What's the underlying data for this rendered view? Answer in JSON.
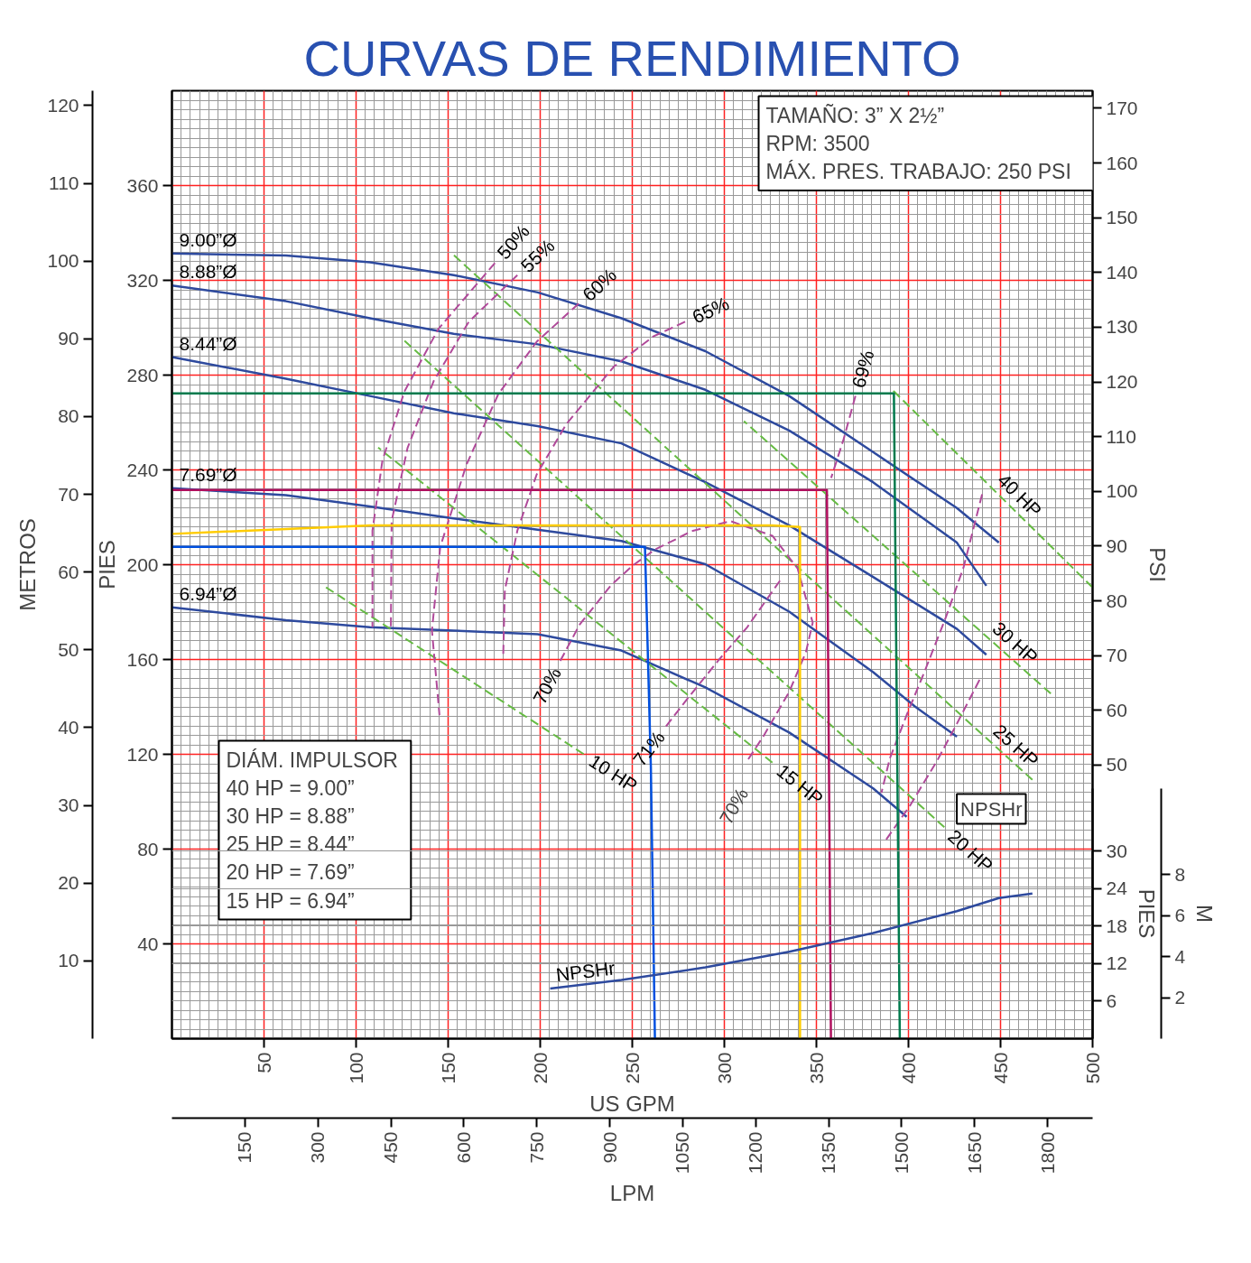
{
  "chart_data": [
    {
      "type": "line",
      "title": "CURVAS DE RENDIMIENTO",
      "xlabel": "US GPM",
      "x2label": "LPM",
      "ylabel": "PIES",
      "y2label": "METROS",
      "y3label": "PSI",
      "xlim": [
        0,
        500
      ],
      "xticks": [
        50,
        100,
        150,
        200,
        250,
        300,
        350,
        400,
        450,
        500
      ],
      "x2lim": [
        0,
        1892.7
      ],
      "x2ticks": [
        150,
        300,
        450,
        600,
        750,
        900,
        1050,
        1200,
        1350,
        1500,
        1650,
        1800
      ],
      "ylim": [
        0,
        400
      ],
      "yticks": [
        40,
        80,
        120,
        160,
        200,
        240,
        280,
        320,
        360
      ],
      "y2lim": [
        0,
        121.9
      ],
      "y2ticks": [
        10,
        20,
        30,
        40,
        50,
        60,
        70,
        80,
        90,
        100,
        110,
        120
      ],
      "y3lim": [
        0,
        173.2
      ],
      "y3ticks": [
        50,
        60,
        70,
        80,
        90,
        100,
        110,
        120,
        130,
        140,
        150,
        160,
        170
      ],
      "grid": true,
      "legend": false,
      "marker": "none",
      "annotations": [
        "TAMAÑO:  3”  X  2½”",
        "RPM:  3500",
        "MÁX.  PRES.  TRABAJO:  250  PSI",
        "DIÁM.  IMPULSOR",
        "40  HP  =  9.00”",
        "30  HP  =  8.88”",
        "25  HP  =  8.44”",
        "20  HP  =  7.69”",
        "15  HP  =  6.94”",
        "70%"
      ],
      "series": [
        {
          "name": "9.00”Ø",
          "color": "#2e4a9e",
          "line_style": "solid",
          "x": [
            0,
            61.9,
            107.5,
            153,
            198.6,
            244.1,
            289.7,
            335.2,
            380.8,
            426.3,
            449.1
          ],
          "values": [
            331.3,
            330.5,
            327.6,
            322.2,
            314.9,
            304,
            290.1,
            271.2,
            247.5,
            223.9,
            209.3
          ]
        },
        {
          "name": "8.88”Ø",
          "color": "#2e4a9e",
          "line_style": "solid",
          "x": [
            0,
            61.9,
            107.5,
            153,
            198.6,
            244.1,
            289.7,
            335.2,
            380.8,
            426.3,
            442.3
          ],
          "values": [
            317.8,
            311.2,
            304,
            297.4,
            293,
            285.8,
            273.8,
            256.6,
            234.8,
            209.3,
            191.1
          ]
        },
        {
          "name": "8.44”Ø",
          "color": "#2e4a9e",
          "line_style": "solid",
          "x": [
            0,
            61.9,
            107.5,
            153,
            198.6,
            244.1,
            289.7,
            335.2,
            380.8,
            426.3,
            442.3
          ],
          "values": [
            287.6,
            278.5,
            271.2,
            263.9,
            258.5,
            251.2,
            234.8,
            216.6,
            194.8,
            172.9,
            162
          ]
        },
        {
          "name": "7.69”Ø",
          "color": "#2e4a9e",
          "line_style": "solid",
          "x": [
            0,
            61.9,
            107.5,
            153,
            198.6,
            244.1,
            289.7,
            335.2,
            380.8,
            403.5,
            426.3
          ],
          "values": [
            232.3,
            229.3,
            224.6,
            219.5,
            214.8,
            210,
            200.2,
            180.2,
            154.7,
            140.2,
            127.4
          ]
        },
        {
          "name": "6.94”Ø",
          "color": "#2e4a9e",
          "line_style": "solid",
          "x": [
            0,
            61.9,
            107.5,
            153,
            198.6,
            244.1,
            289.7,
            335.2,
            380.8,
            399
          ],
          "values": [
            182,
            176.6,
            173.6,
            172.2,
            170.7,
            163.8,
            148.2,
            129.2,
            105.6,
            93.6
          ]
        },
        {
          "name": "10 HP",
          "color": "#66bb44",
          "line_style": "dashed",
          "x": [
            223.6,
            82.4
          ],
          "values": [
            120.1,
            191.1
          ]
        },
        {
          "name": "15 HP",
          "color": "#66bb44",
          "line_style": "dashed",
          "x": [
            326.1,
            112.0
          ],
          "values": [
            116.5,
            249.4
          ]
        },
        {
          "name": "20 HP",
          "color": "#66bb44",
          "line_style": "dashed",
          "x": [
            419.5,
            125.7
          ],
          "values": [
            89.2,
            294.9
          ]
        },
        {
          "name": "25 HP",
          "color": "#66bb44",
          "line_style": "dashed",
          "x": [
            467.3,
            152.1
          ],
          "values": [
            109.2,
            331.3
          ]
        },
        {
          "name": "30 HP",
          "color": "#66bb44",
          "line_style": "dashed",
          "x": [
            477.3,
            310.6
          ],
          "values": [
            145.6,
            260.6
          ]
        },
        {
          "name": "40 HP",
          "color": "#66bb44",
          "line_style": "dashed",
          "x": [
            500,
            391.2
          ],
          "values": [
            190.4,
            273.8
          ]
        },
        {
          "name": "50%",
          "color": "#b04a9a",
          "line_style": "dashed",
          "x": [
            175.4,
            144.8,
            126.2,
            114.3,
            108.9,
            108.9
          ],
          "values": [
            327.3,
            299.6,
            273.0,
            243.9,
            214.4,
            173.6
          ]
        },
        {
          "name": "55%",
          "color": "#b04a9a",
          "line_style": "dashed",
          "x": [
            187.6,
            161.2,
            142.1,
            128.0,
            119.3,
            118.9
          ],
          "values": [
            322.2,
            302.5,
            277.4,
            249.4,
            218.4,
            172.9
          ]
        },
        {
          "name": "60%",
          "color": "#b04a9a",
          "line_style": "dashed",
          "x": [
            220.9,
            198.1,
            177.2,
            159.9,
            145.7,
            141.2,
            145.3,
            null,
            438.6,
            426.3,
            415.8,
            400.8,
            387.6
          ],
          "values": [
            310.2,
            294.1,
            271.9,
            242.1,
            207.5,
            172.2,
            136.5,
            null,
            151.4,
            132.9,
            117.6,
            98.3,
            83.7
          ]
        },
        {
          "name": "65%",
          "color": "#b04a9a",
          "line_style": "dashed",
          "x": [
            278.7,
            261.4,
            240.0,
            214.1,
            198.1,
            187.6,
            180.8,
            179.9,
            null,
            440.0,
            430.0,
            420.4,
            409.0,
            399.0,
            389.9,
            385.3
          ],
          "values": [
            302.5,
            296.3,
            283.6,
            259.2,
            238.1,
            214.4,
            189.3,
            161.3,
            null,
            229.7,
            199.1,
            178.0,
            155.4,
            136.5,
            118.3,
            103.7
          ]
        },
        {
          "name": "69%",
          "color": "#b04a9a",
          "line_style": "dashed",
          "x": [
            371.2,
            364.8,
            358.0
          ],
          "values": [
            271.2,
            253.0,
            236.6
          ]
        },
        {
          "name": "70%",
          "color": "#b04a9a",
          "line_style": "dashed",
          "x": [
            210.9,
            221.4,
            238.2,
            250.0,
            262.3,
            274.6,
            281.9,
            303.3,
            326.1,
            339.8,
            348.0,
            344.3,
            335.2,
            321.6,
            312.4
          ],
          "values": [
            159.4,
            174.7,
            191.1,
            199.5,
            206.4,
            211.1,
            214.1,
            218.4,
            212.2,
            198.4,
            175.5,
            163.1,
            146.3,
            128.1,
            117.2
          ]
        },
        {
          "name": "71%",
          "color": "#b04a9a",
          "line_style": "dashed",
          "x": [
            268.3,
            279.6,
            297.4,
            312.4,
            331.6
          ],
          "values": [
            131.8,
            143.1,
            160.2,
            173.6,
            194.8
          ]
        },
        {
          "color": "#007a4d",
          "line_style": "solid",
          "x": [
            0,
            392.1,
            395.3
          ],
          "values": [
            272.3,
            272.3,
            0
          ]
        },
        {
          "color": "#b0105e",
          "line_style": "solid",
          "x": [
            0,
            355.7,
            357.9
          ],
          "values": [
            231.5,
            231.5,
            0
          ]
        },
        {
          "color": "#ffcc00",
          "line_style": "solid",
          "x": [
            0,
            107.5,
            326.1,
            341.1,
            341.1
          ],
          "values": [
            213,
            216.6,
            216.6,
            215.9,
            0
          ]
        },
        {
          "color": "#0050e0",
          "line_style": "solid",
          "x": [
            0,
            256.9,
            260.1,
            262.3
          ],
          "values": [
            207.5,
            207.5,
            114.7,
            0
          ]
        }
      ]
    },
    {
      "type": "line",
      "title": "NPSHr",
      "ylabel": "PIES",
      "y2label": "M",
      "xlim": [
        0,
        500
      ],
      "ylim": [
        0,
        40
      ],
      "yticks": [
        6,
        12,
        18,
        24,
        30
      ],
      "y2lim": [
        0,
        12.19
      ],
      "y2ticks": [
        2,
        4,
        6,
        8
      ],
      "tick_labels": "y",
      "marker": "none",
      "grid": "y",
      "series": [
        {
          "name": "NPSHr",
          "color": "#2e4a9e",
          "line_style": "solid",
          "x": [
            205.4,
            244.1,
            289.7,
            335.2,
            380.8,
            426.3,
            449.1,
            467.3
          ],
          "values": [
            8.0,
            9.4,
            11.4,
            13.9,
            16.9,
            20.4,
            22.5,
            23.2
          ]
        }
      ]
    }
  ]
}
